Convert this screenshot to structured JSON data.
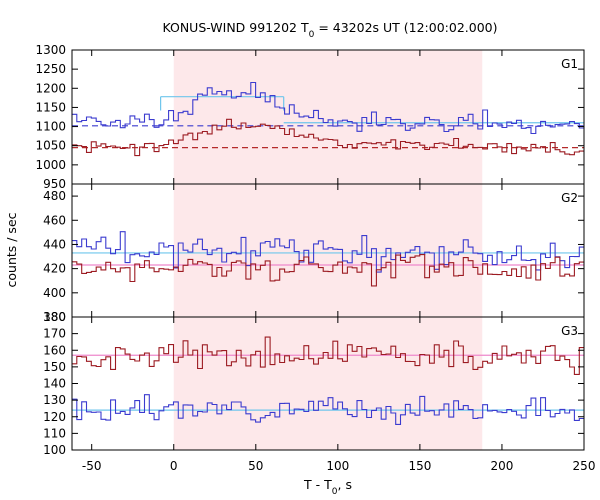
{
  "chart_data": {
    "type": "line",
    "title_main": "KONUS-WIND 991202 T",
    "title_sub": "0",
    "title_rest": " = 43202s UT (12:00:02.000)",
    "xlabel_main": "T - T",
    "xlabel_sub": "0",
    "xlabel_rest": ", s",
    "ylabel": "counts / sec",
    "xlim": [
      -62,
      250
    ],
    "xticks": [
      -50,
      0,
      50,
      100,
      150,
      200,
      250
    ],
    "highlight_interval": [
      0,
      188
    ],
    "colors": {
      "highlight": "#fde8ea",
      "blue": "#3b3bcf",
      "red": "#9c1b22",
      "fit_light": "#6ec6ec",
      "fit_dash_blue": "#3b3bcf",
      "fit_dash_red": "#b52a2a",
      "bg_pink": "#ee88cc"
    },
    "bin_width": 2.944,
    "x_start": -62,
    "panels": [
      {
        "label": "G1",
        "ylim": [
          950,
          1300
        ],
        "yticks": [
          950,
          1000,
          1050,
          1100,
          1150,
          1200,
          1250,
          1300
        ],
        "series": [
          {
            "color": "blue",
            "anchors": [
              [
                -62,
                1125
              ],
              [
                -40,
                1110
              ],
              [
                -10,
                1110
              ],
              [
                0,
                1125
              ],
              [
                10,
                1150
              ],
              [
                20,
                1195
              ],
              [
                30,
                1175
              ],
              [
                45,
                1195
              ],
              [
                55,
                1180
              ],
              [
                65,
                1160
              ],
              [
                75,
                1130
              ],
              [
                100,
                1115
              ],
              [
                150,
                1110
              ],
              [
                190,
                1110
              ],
              [
                250,
                1105
              ]
            ],
            "amp": 20,
            "seed": 11
          },
          {
            "color": "red",
            "anchors": [
              [
                -62,
                1045
              ],
              [
                -10,
                1045
              ],
              [
                0,
                1055
              ],
              [
                20,
                1090
              ],
              [
                40,
                1105
              ],
              [
                60,
                1100
              ],
              [
                75,
                1080
              ],
              [
                100,
                1065
              ],
              [
                140,
                1055
              ],
              [
                188,
                1045
              ],
              [
                250,
                1040
              ]
            ],
            "amp": 15,
            "seed": 23
          }
        ],
        "fits": [
          {
            "style": "dash",
            "color": "fit_dash_blue",
            "segments": [
              [
                -62,
                1102,
                -10,
                1102
              ],
              [
                -10,
                1102,
                250,
                1102
              ]
            ]
          },
          {
            "style": "dash",
            "color": "fit_dash_red",
            "segments": [
              [
                -62,
                1045,
                250,
                1045
              ]
            ]
          },
          {
            "style": "solid",
            "color": "fit_light",
            "segments": [
              [
                -8,
                1178,
                67,
                1178
              ],
              [
                -8,
                1178,
                -8,
                1142
              ],
              [
                67,
                1178,
                67,
                1142
              ],
              [
                67,
                1110,
                250,
                1110
              ]
            ]
          }
        ]
      },
      {
        "label": "G2",
        "ylim": [
          380,
          490
        ],
        "yticks": [
          380,
          400,
          420,
          440,
          460,
          480
        ],
        "series": [
          {
            "color": "blue",
            "anchors": [
              [
                -62,
                432
              ],
              [
                0,
                435
              ],
              [
                50,
                438
              ],
              [
                100,
                435
              ],
              [
                150,
                432
              ],
              [
                188,
                432
              ],
              [
                250,
                432
              ]
            ],
            "amp": 12,
            "seed": 37
          },
          {
            "color": "red",
            "anchors": [
              [
                -62,
                420
              ],
              [
                50,
                420
              ],
              [
                100,
                420
              ],
              [
                188,
                420
              ],
              [
                250,
                420
              ]
            ],
            "amp": 10,
            "seed": 41
          }
        ],
        "fits": [
          {
            "style": "solid",
            "color": "fit_light",
            "segments": [
              [
                -62,
                433,
                250,
                433
              ]
            ]
          },
          {
            "style": "solid",
            "color": "bg_pink",
            "segments": [
              [
                -62,
                423,
                250,
                423
              ]
            ]
          }
        ]
      },
      {
        "label": "G3",
        "ylim": [
          100,
          180
        ],
        "yticks": [
          100,
          110,
          120,
          130,
          140,
          150,
          160,
          170,
          180
        ],
        "series": [
          {
            "color": "red",
            "anchors": [
              [
                -62,
                156
              ],
              [
                50,
                157
              ],
              [
                100,
                158
              ],
              [
                188,
                156
              ],
              [
                250,
                156
              ]
            ],
            "amp": 8,
            "seed": 53
          },
          {
            "color": "blue",
            "anchors": [
              [
                -62,
                124
              ],
              [
                50,
                125
              ],
              [
                100,
                125
              ],
              [
                188,
                124
              ],
              [
                250,
                124
              ]
            ],
            "amp": 6,
            "seed": 67
          }
        ],
        "fits": [
          {
            "style": "solid",
            "color": "bg_pink",
            "segments": [
              [
                -62,
                157,
                250,
                157
              ]
            ]
          },
          {
            "style": "solid",
            "color": "fit_light",
            "segments": [
              [
                -62,
                124,
                250,
                124
              ]
            ]
          }
        ]
      }
    ]
  }
}
